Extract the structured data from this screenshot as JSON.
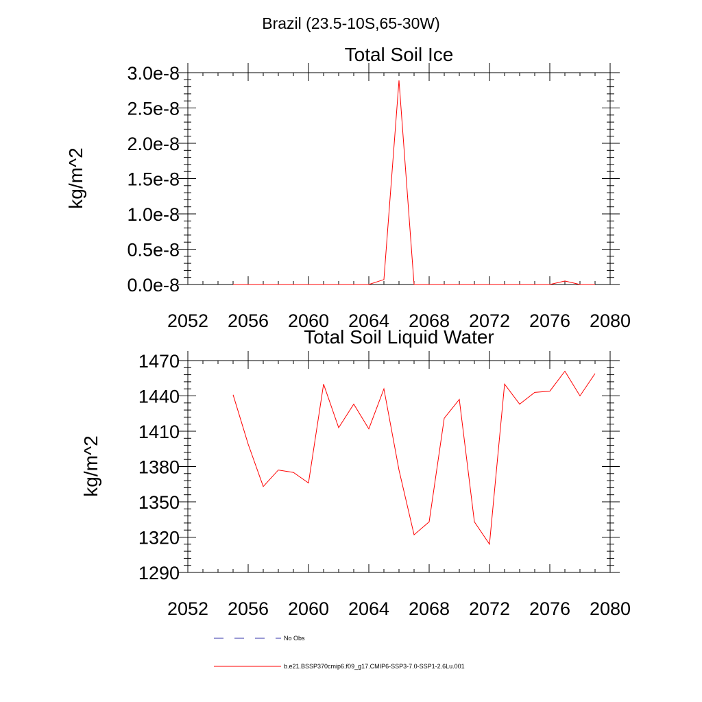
{
  "figure_title": "Brazil (23.5-10S,65-30W)",
  "colors": {
    "series": "#ff0000",
    "obs": "#3333aa",
    "axis": "#000000"
  },
  "legend": {
    "obs_label": "No Obs",
    "series_label": "b.e21.BSSP370cmip6.f09_g17.CMIP6-SSP3-7.0-SSP1-2.6Lu.001"
  },
  "chart_data": [
    {
      "type": "line",
      "title": "Total Soil Ice",
      "xlabel": "",
      "ylabel": "kg/m^2",
      "xlim": [
        2052,
        2080
      ],
      "ylim": [
        0,
        3e-08
      ],
      "xticks": [
        2052,
        2056,
        2060,
        2064,
        2068,
        2072,
        2076,
        2080
      ],
      "xtick_labels": [
        "2052",
        "2056",
        "2060",
        "2064",
        "2068",
        "2072",
        "2076",
        "2080"
      ],
      "yticks": [
        0,
        5e-09,
        1e-08,
        1.5e-08,
        2e-08,
        2.5e-08,
        3e-08
      ],
      "ytick_labels": [
        "0.0e-8",
        "0.5e-8",
        "1.0e-8",
        "1.5e-8",
        "2.0e-8",
        "2.5e-8",
        "3.0e-8"
      ],
      "grid": false,
      "series": [
        {
          "name": "b.e21.BSSP370cmip6.f09_g17.CMIP6-SSP3-7.0-SSP1-2.6Lu.001",
          "x": [
            2055,
            2056,
            2057,
            2058,
            2059,
            2060,
            2061,
            2062,
            2063,
            2064,
            2065,
            2066,
            2067,
            2068,
            2069,
            2070,
            2071,
            2072,
            2073,
            2074,
            2075,
            2076,
            2077,
            2078,
            2079
          ],
          "y": [
            0,
            0,
            0,
            0,
            0,
            0,
            0,
            0,
            0,
            0,
            7e-10,
            2.89e-08,
            0,
            0,
            0,
            0,
            0,
            0,
            0,
            0,
            0,
            0,
            5e-10,
            0,
            0
          ]
        }
      ]
    },
    {
      "type": "line",
      "title": "Total Soil Liquid Water",
      "xlabel": "",
      "ylabel": "kg/m^2",
      "xlim": [
        2052,
        2080
      ],
      "ylim": [
        1290,
        1470
      ],
      "xticks": [
        2052,
        2056,
        2060,
        2064,
        2068,
        2072,
        2076,
        2080
      ],
      "xtick_labels": [
        "2052",
        "2056",
        "2060",
        "2064",
        "2068",
        "2072",
        "2076",
        "2080"
      ],
      "yticks": [
        1290,
        1320,
        1350,
        1380,
        1410,
        1440,
        1470
      ],
      "ytick_labels": [
        "1290",
        "1320",
        "1350",
        "1380",
        "1410",
        "1440",
        "1470"
      ],
      "grid": false,
      "series": [
        {
          "name": "b.e21.BSSP370cmip6.f09_g17.CMIP6-SSP3-7.0-SSP1-2.6Lu.001",
          "x": [
            2055,
            2056,
            2057,
            2058,
            2059,
            2060,
            2061,
            2062,
            2063,
            2064,
            2065,
            2066,
            2067,
            2068,
            2069,
            2070,
            2071,
            2072,
            2073,
            2074,
            2075,
            2076,
            2077,
            2078,
            2079
          ],
          "y": [
            1441,
            1399,
            1363,
            1377,
            1375,
            1366,
            1450,
            1413,
            1433,
            1412,
            1446,
            1377,
            1322,
            1333,
            1421,
            1437,
            1333,
            1314,
            1450,
            1433,
            1443,
            1444,
            1461,
            1440,
            1459
          ]
        }
      ]
    }
  ]
}
